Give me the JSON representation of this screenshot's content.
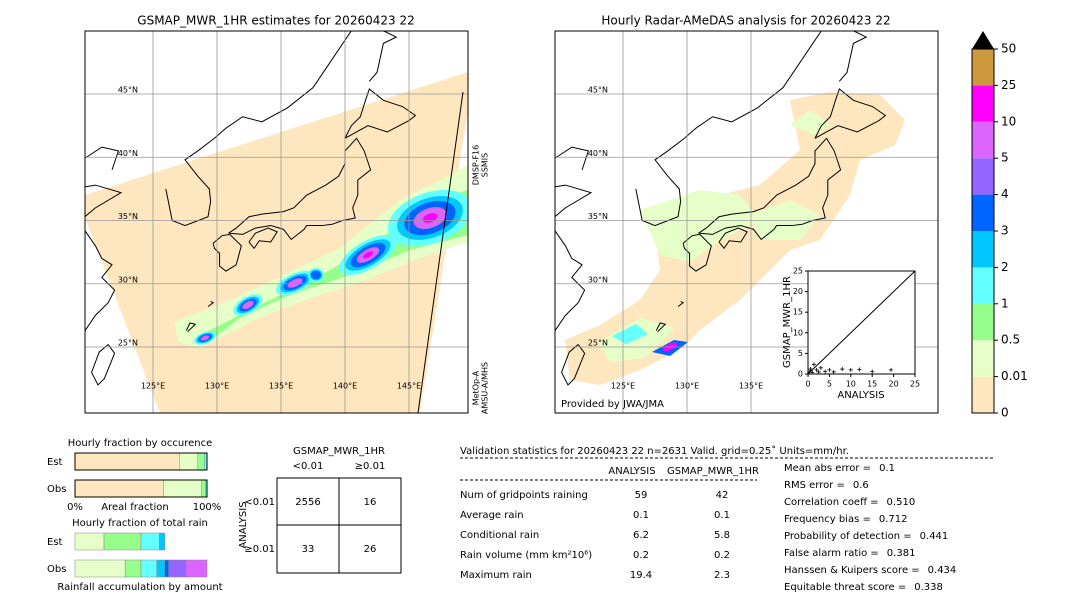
{
  "left_map": {
    "title": "GSMAP_MWR_1HR estimates for 20260423 22",
    "lat_labels": [
      "45°N",
      "40°N",
      "35°N",
      "30°N",
      "25°N"
    ],
    "lon_labels": [
      "125°E",
      "130°E",
      "135°E",
      "140°E",
      "145°E"
    ],
    "swath_labels": [
      [
        "DMSP-F16",
        "SSMIS"
      ],
      [
        "MetOp-A",
        "AMSU-A/MHS"
      ]
    ]
  },
  "right_map": {
    "title": "Hourly Radar-AMeDAS analysis for 20260423 22",
    "lat_labels": [
      "45°N",
      "40°N",
      "35°N",
      "30°N",
      "25°N"
    ],
    "lon_labels": [
      "125°E",
      "130°E",
      "135°E"
    ],
    "credit": "Provided by JWA/JMA"
  },
  "colorbar": {
    "ticks": [
      0,
      0.01,
      0.5,
      1,
      2,
      3,
      4,
      5,
      10,
      25,
      50
    ],
    "colors": [
      "#fee6be",
      "#e6ffc8",
      "#96ff8c",
      "#64ffff",
      "#00c8ff",
      "#0064ff",
      "#9664ff",
      "#dc64ff",
      "#ff00ff",
      "#cc9a3c"
    ]
  },
  "scatter": {
    "type": "scatter",
    "xlabel": "ANALYSIS",
    "ylabel": "GSMAP_MWR_1HR",
    "xlim": [
      0,
      25
    ],
    "ylim": [
      0,
      25
    ],
    "xticks": [
      0,
      5,
      10,
      15,
      20,
      25
    ],
    "yticks": [
      0,
      5,
      10,
      15,
      20,
      25
    ],
    "x": [
      0.3,
      0.6,
      1,
      1.4,
      2,
      2.5,
      3,
      4,
      5,
      6,
      8,
      10,
      12,
      15,
      19.4
    ],
    "y": [
      0.5,
      1.2,
      0.4,
      2.3,
      1,
      0.5,
      1.5,
      0.6,
      1,
      0.5,
      1.2,
      1,
      1.1,
      0.6,
      1
    ]
  },
  "occurrence": {
    "title": "Hourly fraction by occurence",
    "xlabel": "Areal fraction",
    "xticks": [
      {
        "value": 0,
        "label": "0%"
      },
      {
        "value": 100,
        "label": "100%"
      }
    ],
    "rows": [
      {
        "name": "Est",
        "values": [
          79,
          14,
          5,
          2
        ]
      },
      {
        "name": "Obs",
        "values": [
          67,
          29,
          3,
          1
        ]
      }
    ]
  },
  "amount": {
    "title": "Hourly fraction of total rain",
    "xlabel": "Rainfall accumulation by amount",
    "rows": [
      {
        "name": "Est",
        "values": [
          22,
          28,
          14,
          4
        ]
      },
      {
        "name": "Obs",
        "values": [
          38,
          12,
          12,
          6,
          3,
          13,
          16
        ]
      }
    ]
  },
  "contingency": {
    "title": "GSMAP_MWR_1HR",
    "columns": [
      "<0.01",
      "≥0.01"
    ],
    "ylabel": "ANALYSIS",
    "rows": [
      "<0.01",
      "≥0.01"
    ],
    "cells": [
      [
        2556,
        16
      ],
      [
        33,
        26
      ]
    ]
  },
  "validation": {
    "header": "Validation statistics for 20260423 22  n=2631 Valid. grid=0.25˚ Units=mm/hr.",
    "columns": [
      "ANALYSIS",
      "GSMAP_MWR_1HR"
    ],
    "rows": [
      [
        "Num of gridpoints raining",
        "59",
        "42"
      ],
      [
        "Average rain",
        "0.1",
        "0.1"
      ],
      [
        "Conditional rain",
        "6.2",
        "5.8"
      ],
      [
        "Rain volume (mm km²10⁶)",
        "0.2",
        "0.2"
      ],
      [
        "Maximum rain",
        "19.4",
        "2.3"
      ]
    ],
    "scores": [
      [
        "Mean abs error =",
        "0.1"
      ],
      [
        "RMS error =",
        "0.6"
      ],
      [
        "Correlation coeff =",
        "0.510"
      ],
      [
        "Frequency bias =",
        "0.712"
      ],
      [
        "Probability of detection =",
        "0.441"
      ],
      [
        "False alarm ratio =",
        "0.381"
      ],
      [
        "Hanssen & Kuipers score =",
        "0.434"
      ],
      [
        "Equitable threat score =",
        "0.338"
      ]
    ]
  }
}
